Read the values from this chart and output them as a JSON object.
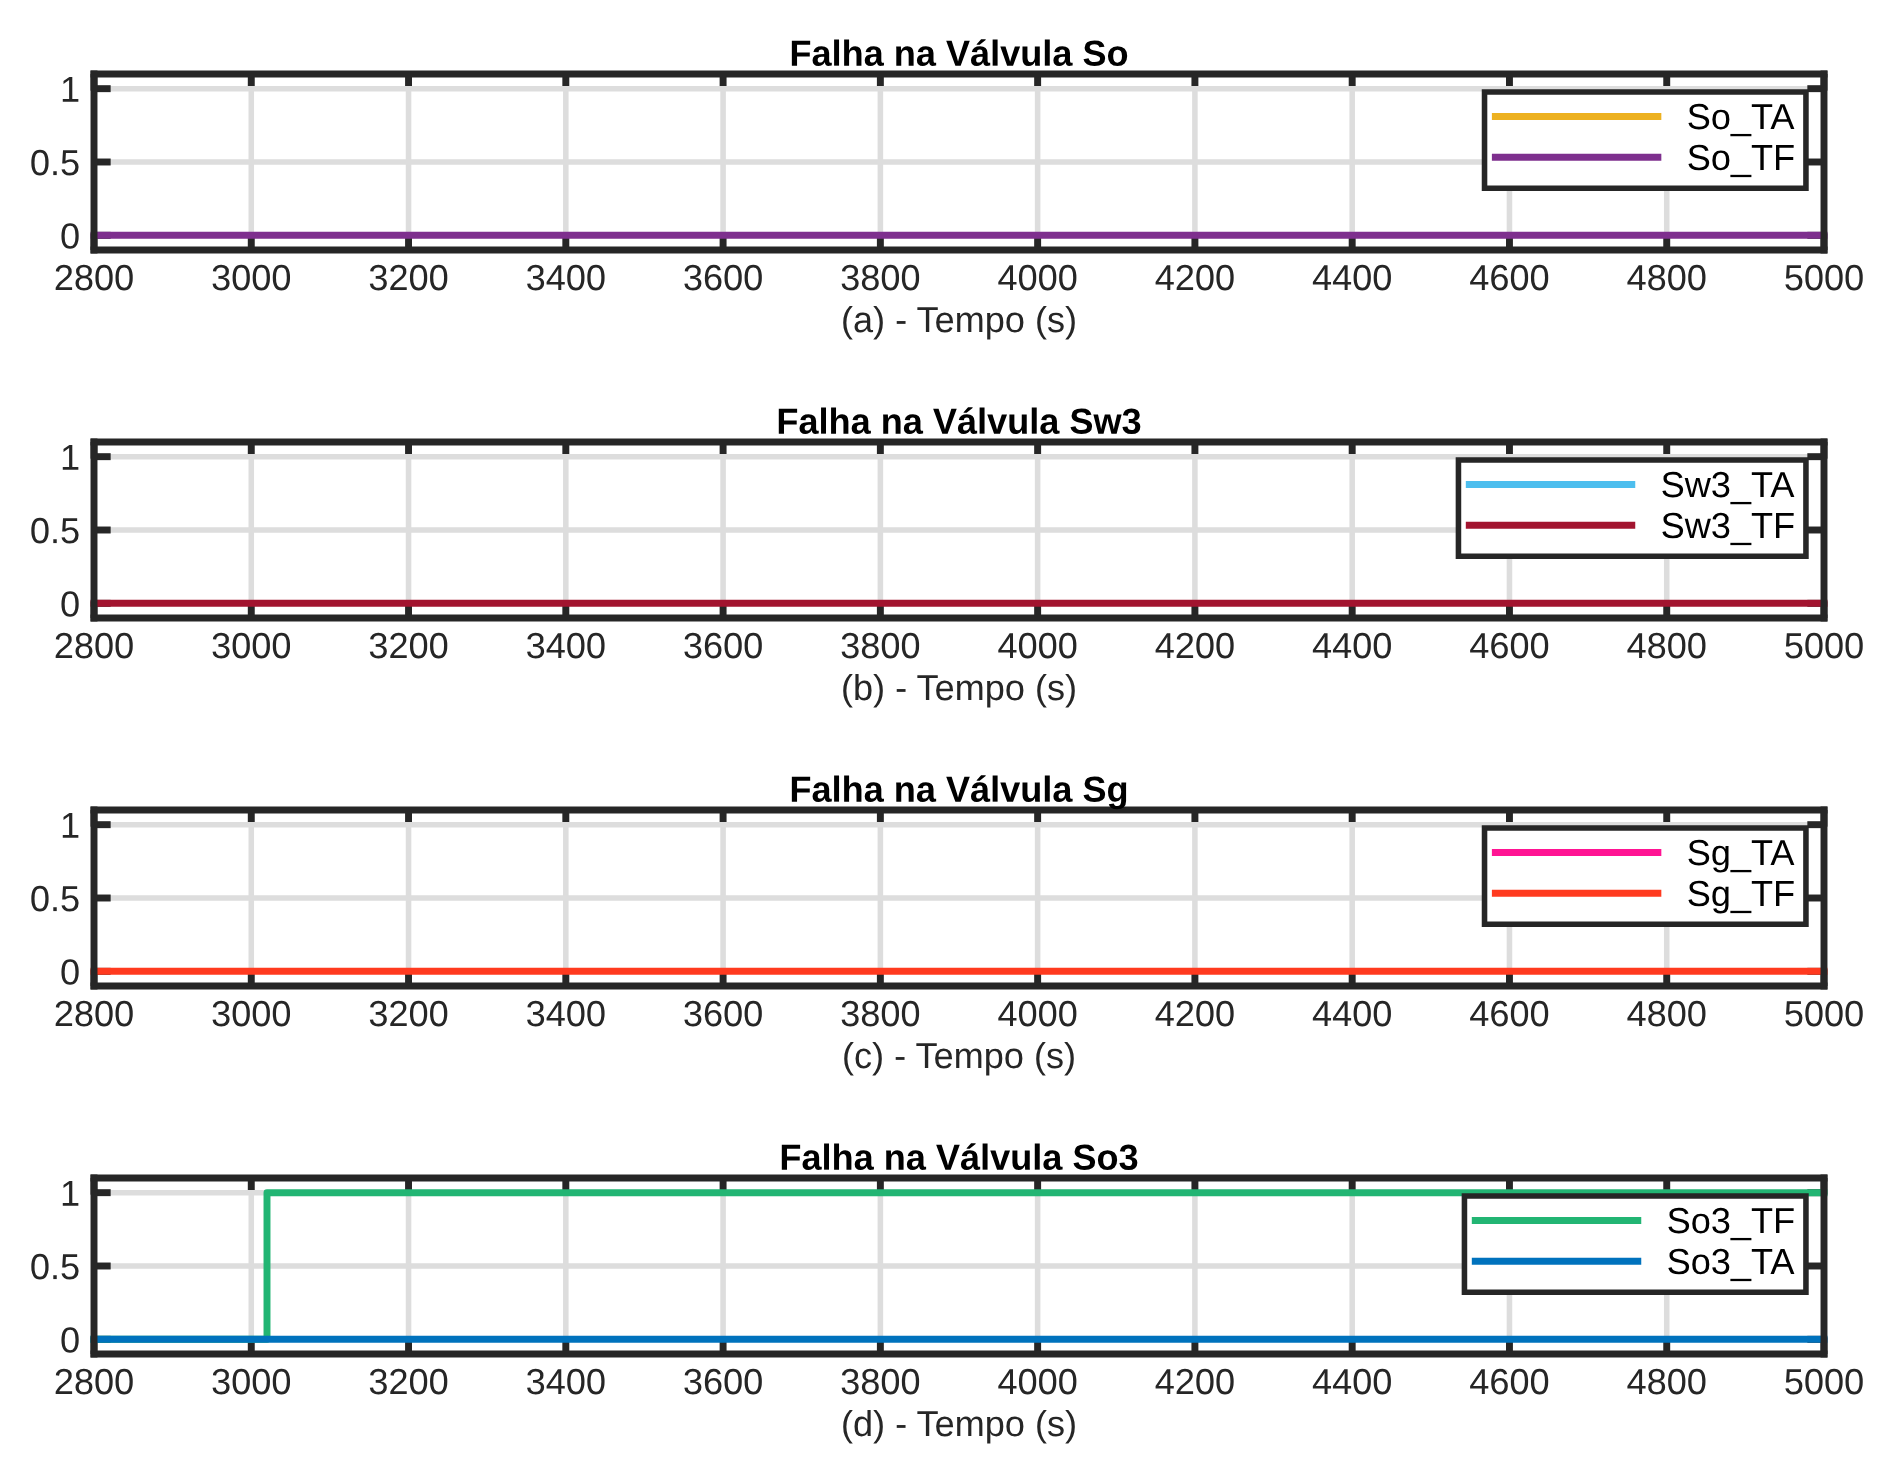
{
  "chart_data": [
    {
      "type": "line",
      "title": "Falha na Válvula So",
      "xlabel": "(a) - Tempo (s)",
      "xlim": [
        2800,
        5000
      ],
      "xticks": [
        2800,
        3000,
        3200,
        3400,
        3600,
        3800,
        4000,
        4200,
        4400,
        4600,
        4800,
        5000
      ],
      "ylim": [
        -0.1,
        1.1
      ],
      "yticks": [
        0,
        0.5,
        1
      ],
      "grid": true,
      "legend": "top right",
      "x": [
        2800,
        5000
      ],
      "series": [
        {
          "name": "So_TA",
          "color": "#edb120",
          "values": [
            null,
            null
          ]
        },
        {
          "name": "So_TF",
          "color": "#7e2f8e",
          "values": [
            0,
            0
          ]
        }
      ]
    },
    {
      "type": "line",
      "title": "Falha na Válvula Sw3",
      "xlabel": "(b) - Tempo (s)",
      "xlim": [
        2800,
        5000
      ],
      "xticks": [
        2800,
        3000,
        3200,
        3400,
        3600,
        3800,
        4000,
        4200,
        4400,
        4600,
        4800,
        5000
      ],
      "ylim": [
        -0.1,
        1.1
      ],
      "yticks": [
        0,
        0.5,
        1
      ],
      "grid": true,
      "legend": "top right",
      "x": [
        2800,
        5000
      ],
      "series": [
        {
          "name": "Sw3_TA",
          "color": "#4dbeee",
          "values": [
            null,
            null
          ]
        },
        {
          "name": "Sw3_TF",
          "color": "#a2142f",
          "values": [
            0,
            0
          ]
        }
      ]
    },
    {
      "type": "line",
      "title": "Falha na Válvula Sg",
      "xlabel": "(c) - Tempo (s)",
      "xlim": [
        2800,
        5000
      ],
      "xticks": [
        2800,
        3000,
        3200,
        3400,
        3600,
        3800,
        4000,
        4200,
        4400,
        4600,
        4800,
        5000
      ],
      "ylim": [
        -0.1,
        1.1
      ],
      "yticks": [
        0,
        0.5,
        1
      ],
      "grid": true,
      "legend": "top right",
      "x": [
        2800,
        5000
      ],
      "series": [
        {
          "name": "Sg_TA",
          "color": "#ff1493",
          "values": [
            null,
            null
          ]
        },
        {
          "name": "Sg_TF",
          "color": "#ff3a1f",
          "values": [
            0,
            0
          ]
        }
      ]
    },
    {
      "type": "step",
      "title": "Falha na Válvula So3",
      "xlabel": "(d) - Tempo (s)",
      "xlim": [
        2800,
        5000
      ],
      "xticks": [
        2800,
        3000,
        3200,
        3400,
        3600,
        3800,
        4000,
        4200,
        4400,
        4600,
        4800,
        5000
      ],
      "ylim": [
        -0.1,
        1.1
      ],
      "yticks": [
        0,
        0.5,
        1
      ],
      "grid": true,
      "legend": "top right",
      "x": [
        2800,
        3020,
        5000
      ],
      "series": [
        {
          "name": "So3_TF",
          "color": "#22b573",
          "values": [
            0,
            1,
            1
          ]
        },
        {
          "name": "So3_TA",
          "color": "#0072bd",
          "values": [
            0,
            0,
            0
          ]
        }
      ]
    }
  ]
}
